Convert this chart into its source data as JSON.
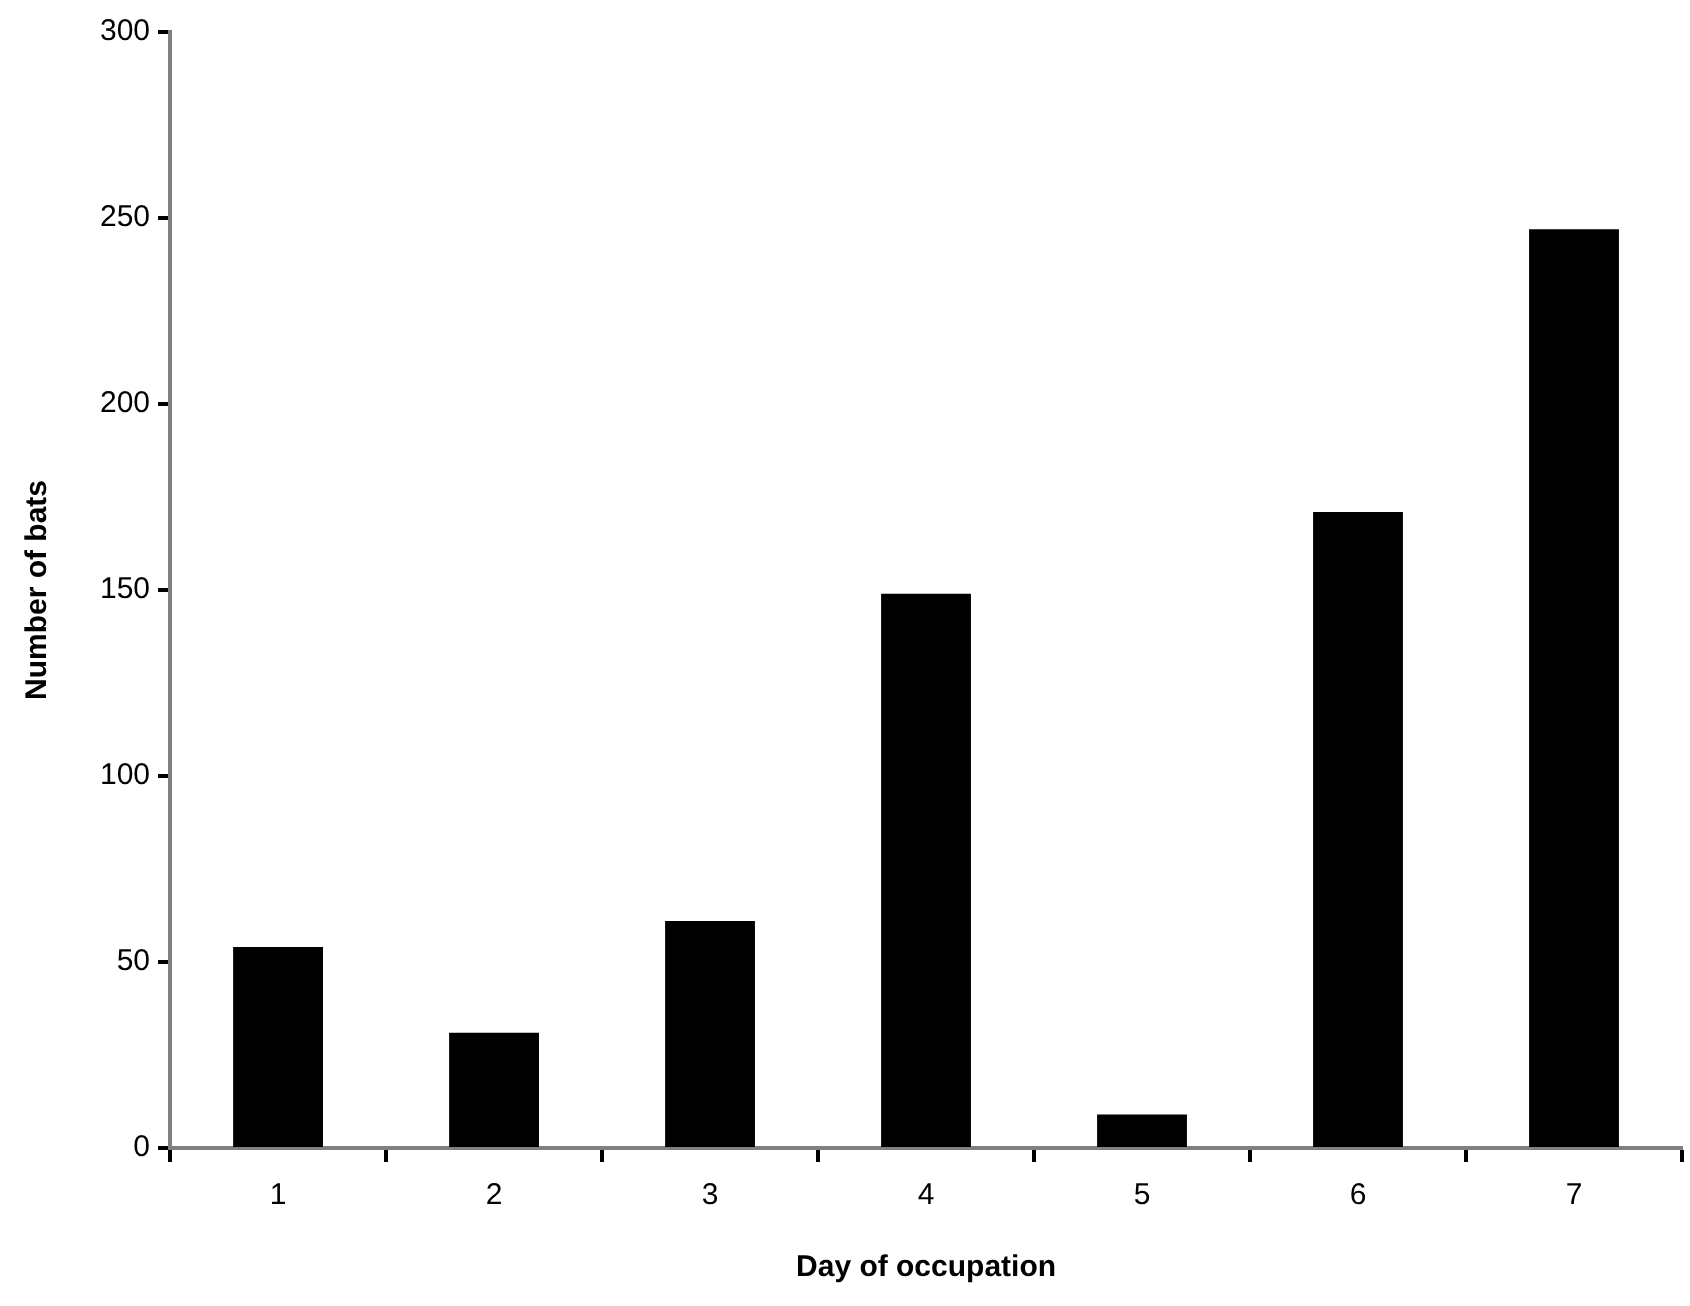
{
  "chart_data": {
    "type": "bar",
    "xlabel": "Day of occupation",
    "ylabel": "Number of bats",
    "categories": [
      "1",
      "2",
      "3",
      "4",
      "5",
      "6",
      "7"
    ],
    "values": [
      54,
      31,
      61,
      149,
      9,
      171,
      247
    ],
    "color": "#000000",
    "ylim": [
      0,
      300
    ],
    "yticks": [
      0,
      50,
      100,
      150,
      200,
      250,
      300
    ],
    "grid": false,
    "legend": false
  }
}
